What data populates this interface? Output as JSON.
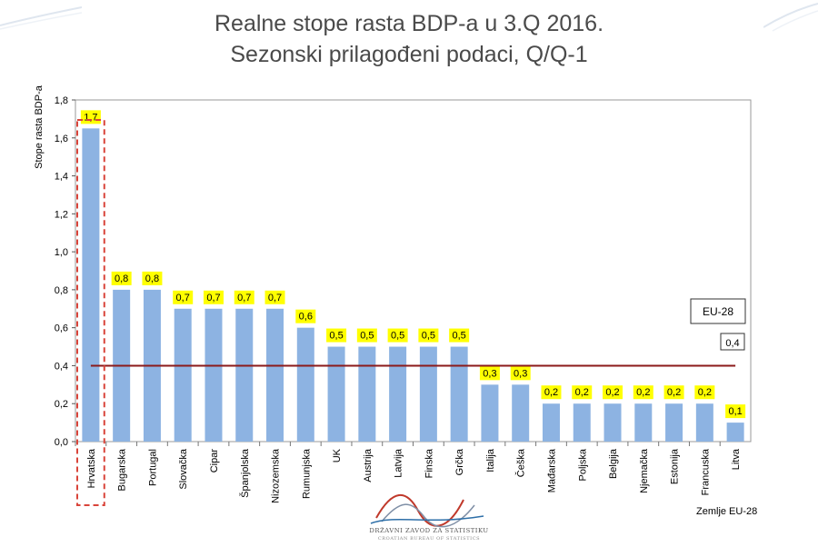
{
  "title_line1": "Realne stope rasta BDP-a u 3.Q 2016.",
  "title_line2": "Sezonski prilagođeni podaci, Q/Q-1",
  "footer_xlabel": "Zemlje EU-28",
  "logo": {
    "name_hr": "DRŽAVNI ZAVOD ZA STATISTIKU",
    "name_en": "CROATIAN BUREAU OF STATISTICS"
  },
  "colors": {
    "bar": "#8db3e2",
    "label_bg": "#ffff00",
    "reference_line": "#8b1a1a",
    "highlight": "#d9443a",
    "title": "#4a4a4a"
  },
  "chart_data": {
    "type": "bar",
    "ylabel": "Stope rasta BDP-a",
    "ylim": [
      0,
      1.8
    ],
    "yticks": [
      "0,0",
      "0,2",
      "0,4",
      "0,6",
      "0,8",
      "1,0",
      "1,2",
      "1,4",
      "1,6",
      "1,8"
    ],
    "grid": false,
    "categories": [
      "Hrvatska",
      "Bugarska",
      "Portugal",
      "Slovačka",
      "Cipar",
      "Španjolska",
      "Nizozemska",
      "Rumunjska",
      "UK",
      "Austrija",
      "Latvija",
      "Finska",
      "Grčka",
      "Italija",
      "Češka",
      "Mađarska",
      "Poljska",
      "Belgija",
      "Njemačka",
      "Estonija",
      "Francuska",
      "Litva"
    ],
    "values": [
      1.65,
      0.8,
      0.8,
      0.7,
      0.7,
      0.7,
      0.7,
      0.6,
      0.5,
      0.5,
      0.5,
      0.5,
      0.5,
      0.3,
      0.3,
      0.2,
      0.2,
      0.2,
      0.2,
      0.2,
      0.2,
      0.1
    ],
    "data_labels": [
      "1,7",
      "0,8",
      "0,8",
      "0,7",
      "0,7",
      "0,7",
      "0,7",
      "0,6",
      "0,5",
      "0,5",
      "0,5",
      "0,5",
      "0,5",
      "0,3",
      "0,3",
      "0,2",
      "0,2",
      "0,2",
      "0,2",
      "0,2",
      "0,2",
      "0,1"
    ],
    "reference_line": {
      "name": "EU-28",
      "value": 0.4,
      "value_label": "0,4"
    },
    "highlighted_category": "Hrvatska"
  }
}
